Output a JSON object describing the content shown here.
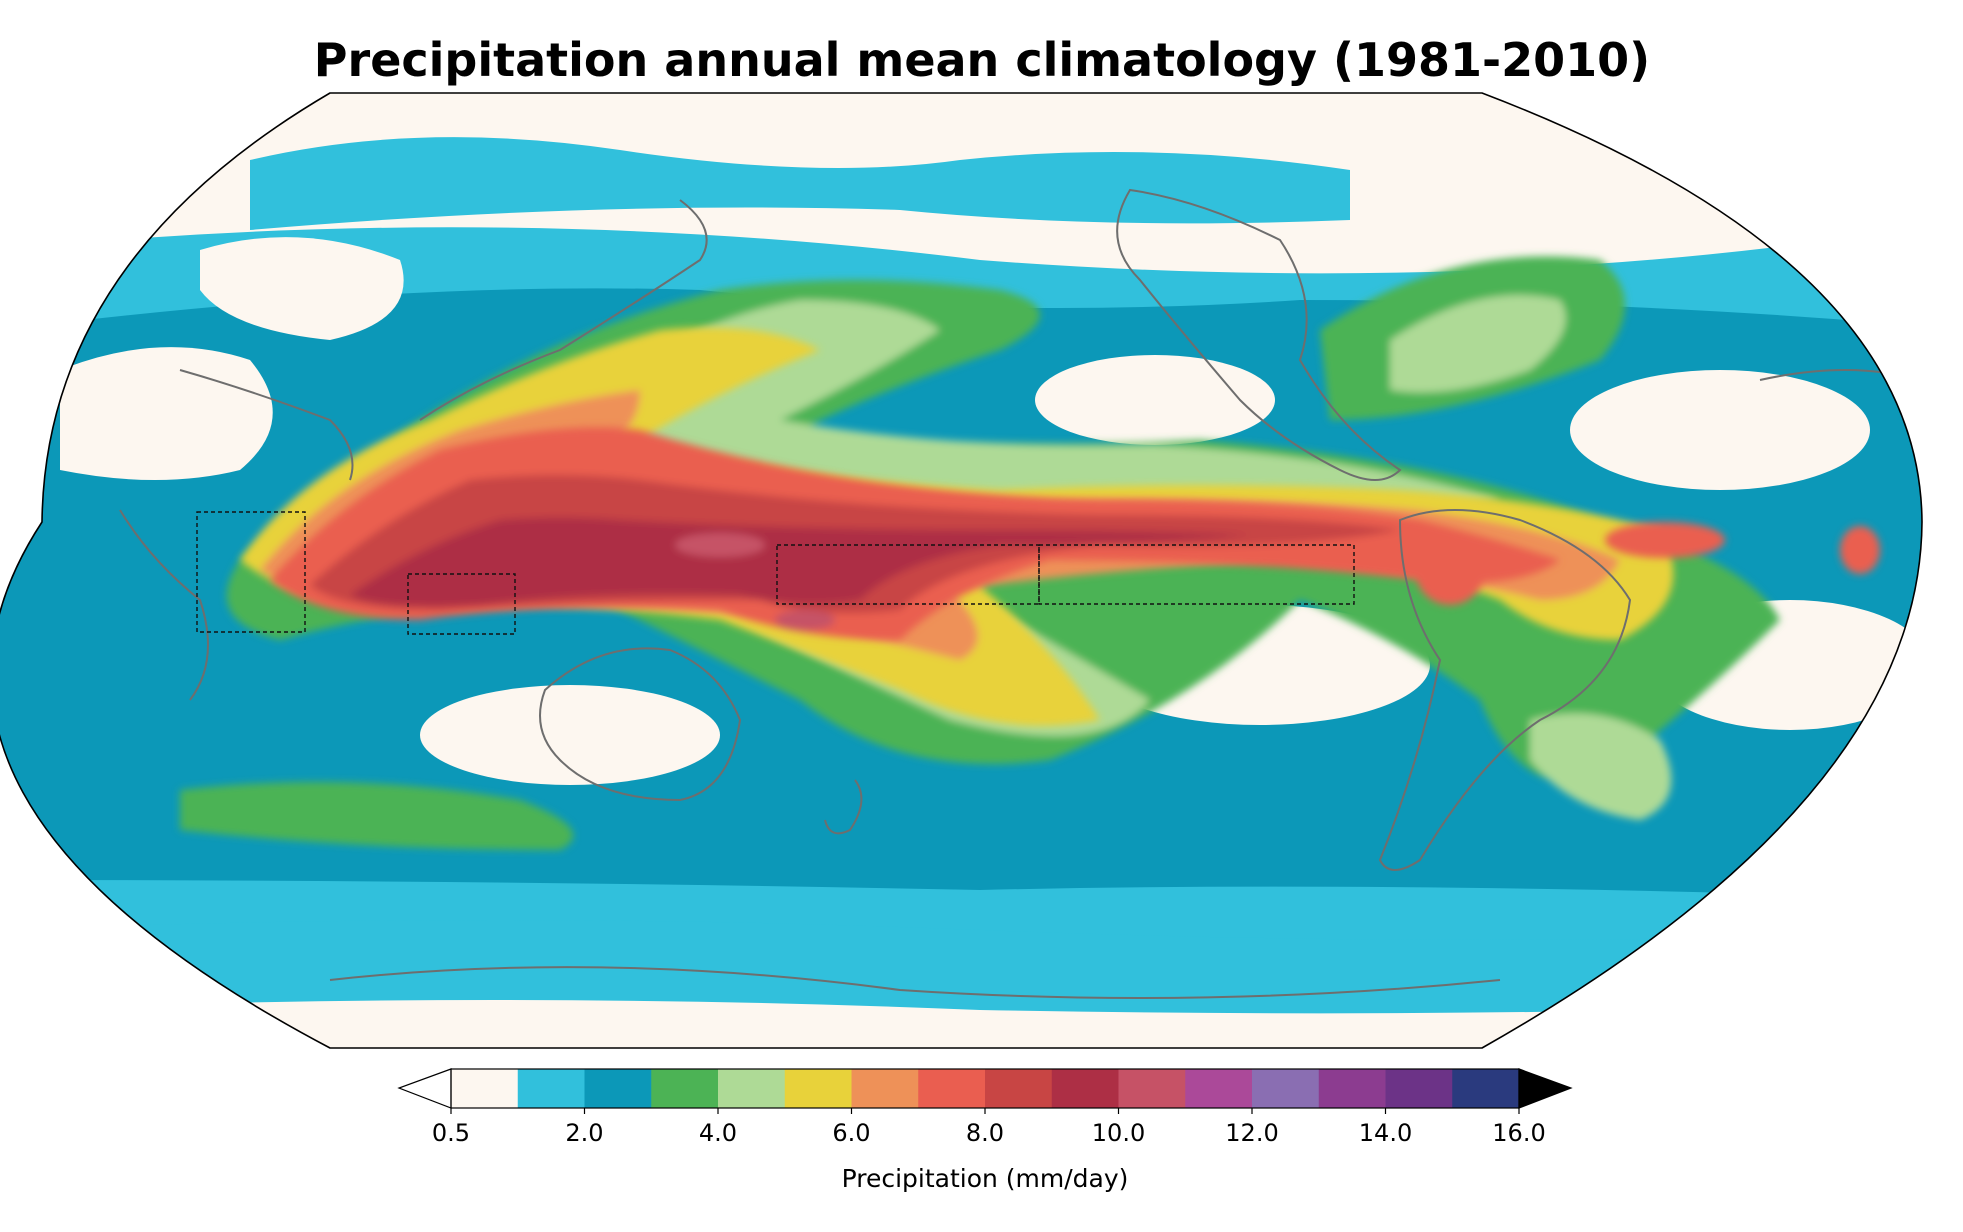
{
  "figure": {
    "title": "Precipitation annual mean climatology (1981-2010)"
  },
  "colorbar": {
    "label": "Precipitation (mm/day)",
    "levels": [
      0.5,
      1.0,
      2.0,
      3.0,
      4.0,
      5.0,
      6.0,
      7.0,
      8.0,
      9.0,
      10.0,
      11.0,
      12.0,
      13.0,
      14.0,
      15.0,
      16.0
    ],
    "tick_labels": [
      "0.5",
      "2.0",
      "4.0",
      "6.0",
      "8.0",
      "10.0",
      "12.0",
      "14.0",
      "16.0"
    ],
    "tick_values": [
      0.5,
      2.0,
      4.0,
      6.0,
      8.0,
      10.0,
      12.0,
      14.0,
      16.0
    ],
    "colors": [
      "#fdf7f0",
      "#31c0dc",
      "#0c98b8",
      "#4cb355",
      "#aeda96",
      "#e8d23a",
      "#ee9158",
      "#ea5e50",
      "#c84544",
      "#ad2f45",
      "#c65266",
      "#ab4999",
      "#8a6eb2",
      "#8c3c90",
      "#6c3387",
      "#2a3a7e"
    ],
    "extend_low_color": "#ffffff",
    "extend_high_color": "#000000"
  },
  "map": {
    "projection": "Robinson",
    "central_longitude": 180,
    "background_color": "#fdf7f0",
    "boxes_note_style": "dashed"
  }
}
